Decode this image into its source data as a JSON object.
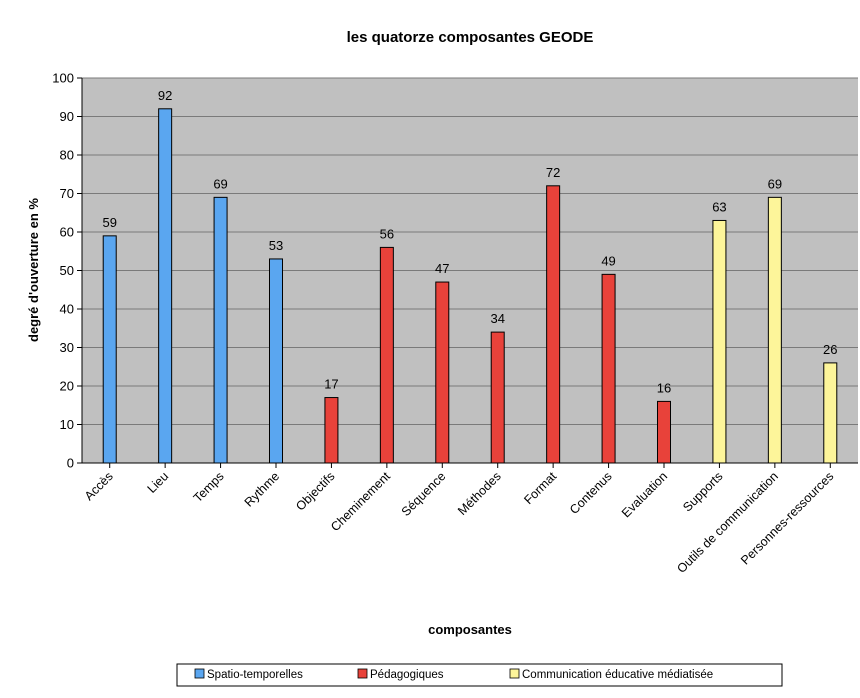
{
  "chart_data": {
    "type": "bar",
    "title": "les quatorze composantes GEODE",
    "xlabel": "composantes",
    "ylabel": "degré d'ouverture en %",
    "ylim": [
      0,
      100
    ],
    "yticks": [
      0,
      10,
      20,
      30,
      40,
      50,
      60,
      70,
      80,
      90,
      100
    ],
    "grid": true,
    "legend_position": "bottom",
    "categories": [
      "Accès",
      "Lieu",
      "Temps",
      "Rythme",
      "Objectifs",
      "Cheminement",
      "Séquence",
      "Méthodes",
      "Format",
      "Contenus",
      "Evaluation",
      "Supports",
      "Outils de communication",
      "Personnes-ressources"
    ],
    "values": [
      59,
      92,
      69,
      53,
      17,
      56,
      47,
      34,
      72,
      49,
      16,
      63,
      69,
      26
    ],
    "groups": [
      0,
      0,
      0,
      0,
      1,
      1,
      1,
      1,
      1,
      1,
      1,
      2,
      2,
      2
    ],
    "series": [
      {
        "name": "Spatio-temporelles",
        "color": "#5aa6f0"
      },
      {
        "name": "Pédagogiques",
        "color": "#e8423a"
      },
      {
        "name": "Communication éducative médiatisée",
        "color": "#fdf59a"
      }
    ],
    "plot_background": "#c0c0c0"
  }
}
